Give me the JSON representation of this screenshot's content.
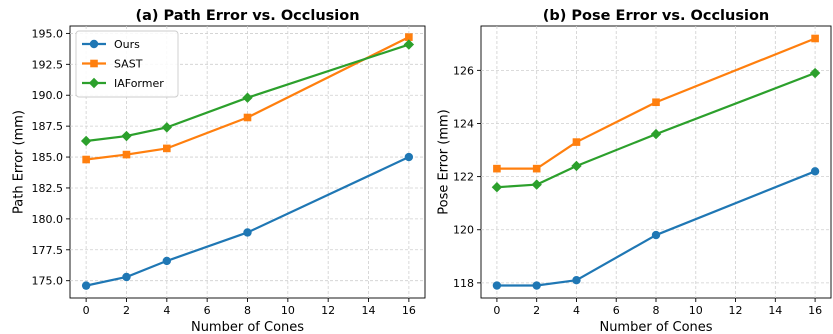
{
  "chart_data": [
    {
      "type": "line",
      "title": "(a) Path Error vs. Occlusion",
      "xlabel": "Number of Cones",
      "ylabel": "Path Error (mm)",
      "x": [
        0,
        2,
        4,
        8,
        16
      ],
      "xlim": [
        -0.8,
        16.8
      ],
      "ylim": [
        173.6,
        195.6
      ],
      "xticks": [
        0,
        2,
        4,
        6,
        8,
        10,
        12,
        14,
        16
      ],
      "xtick_labels": [
        "0",
        "2",
        "4",
        "6",
        "8",
        "10",
        "12",
        "14",
        "16"
      ],
      "yticks": [
        175.0,
        177.5,
        180.0,
        182.5,
        185.0,
        187.5,
        190.0,
        192.5,
        195.0
      ],
      "ytick_labels": [
        "175.0",
        "177.5",
        "180.0",
        "182.5",
        "185.0",
        "187.5",
        "190.0",
        "192.5",
        "195.0"
      ],
      "grid": true,
      "legend": "top-left",
      "series": [
        {
          "name": "Ours",
          "color": "#1f77b4",
          "marker": "circle",
          "values": [
            174.6,
            175.3,
            176.6,
            178.9,
            185.0
          ]
        },
        {
          "name": "SAST",
          "color": "#ff7f0e",
          "marker": "square",
          "values": [
            184.8,
            185.2,
            185.7,
            188.2,
            194.7
          ]
        },
        {
          "name": "IAFormer",
          "color": "#2ca02c",
          "marker": "diamond",
          "values": [
            186.3,
            186.7,
            187.4,
            189.8,
            194.1
          ]
        }
      ]
    },
    {
      "type": "line",
      "title": "(b) Pose Error vs. Occlusion",
      "xlabel": "Number of Cones",
      "ylabel": "Pose Error (mm)",
      "x": [
        0,
        2,
        4,
        8,
        16
      ],
      "xlim": [
        -0.8,
        16.8
      ],
      "ylim": [
        117.43,
        127.67
      ],
      "xticks": [
        0,
        2,
        4,
        6,
        8,
        10,
        12,
        14,
        16
      ],
      "xtick_labels": [
        "0",
        "2",
        "4",
        "6",
        "8",
        "10",
        "12",
        "14",
        "16"
      ],
      "yticks": [
        118,
        120,
        122,
        124,
        126
      ],
      "ytick_labels": [
        "118",
        "120",
        "122",
        "124",
        "126"
      ],
      "grid": true,
      "legend": "none",
      "series": [
        {
          "color": "#1f77b4",
          "marker": "circle",
          "values": [
            117.9,
            117.9,
            118.1,
            119.8,
            122.2
          ]
        },
        {
          "color": "#ff7f0e",
          "marker": "square",
          "values": [
            122.3,
            122.3,
            123.3,
            124.8,
            127.2
          ]
        },
        {
          "color": "#2ca02c",
          "marker": "diamond",
          "values": [
            121.6,
            121.7,
            122.4,
            123.6,
            125.9
          ]
        }
      ]
    }
  ]
}
